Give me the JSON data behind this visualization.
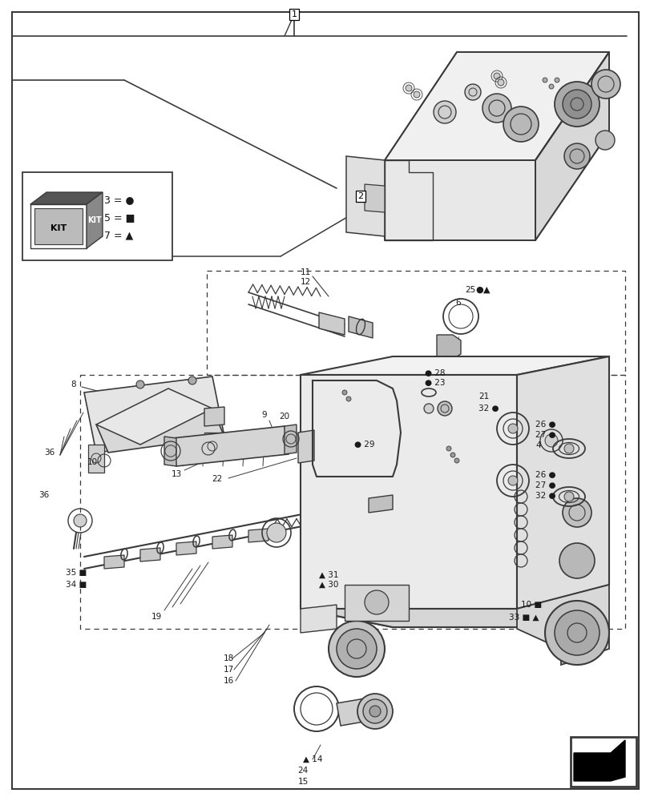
{
  "bg_color": "#ffffff",
  "line_color": "#3a3a3a",
  "text_color": "#1a1a1a",
  "fig_width": 8.12,
  "fig_height": 10.0,
  "dpi": 100
}
